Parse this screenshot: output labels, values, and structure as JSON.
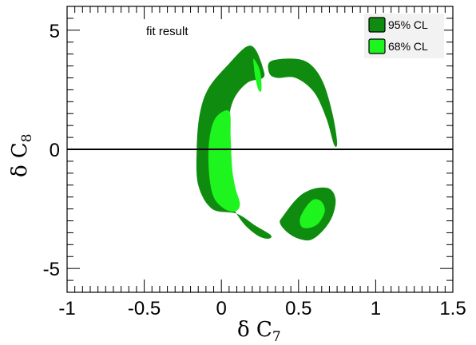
{
  "chart_data": {
    "type": "contour",
    "title": "",
    "xlabel": "δ C",
    "xlabel_sub": "7",
    "ylabel": "δ C",
    "ylabel_sub": "8",
    "xlim": [
      -1,
      1.5
    ],
    "ylim": [
      -6,
      6
    ],
    "x_ticks": [
      -1,
      -0.5,
      0,
      0.5,
      1,
      1.5
    ],
    "x_tick_labels": [
      "-1",
      "-0.5",
      "0",
      "0.5",
      "1",
      "1.5"
    ],
    "y_ticks": [
      -5,
      0,
      5
    ],
    "y_tick_labels": [
      "-5",
      "0",
      "5"
    ],
    "annotation": "fit result",
    "reference_line_y": 0,
    "legend_position": "top-right",
    "series": [
      {
        "name": "95% CL",
        "color": "#0f8c0f",
        "regions": [
          {
            "points": [
              [
                0.22,
                4.2
              ],
              [
                0.27,
                3.4
              ],
              [
                0.27,
                3.0
              ],
              [
                0.17,
                2.8
              ],
              [
                0.08,
                2.1
              ],
              [
                0.04,
                1.0
              ],
              [
                0.02,
                -0.5
              ],
              [
                0.05,
                -2.0
              ],
              [
                0.13,
                -3.0
              ],
              [
                0.23,
                -3.6
              ],
              [
                0.3,
                -3.75
              ],
              [
                0.32,
                -3.6
              ],
              [
                0.22,
                -3.2
              ],
              [
                0.1,
                -2.7
              ],
              [
                -0.06,
                -2.5
              ],
              [
                -0.15,
                -1.5
              ],
              [
                -0.16,
                0.0
              ],
              [
                -0.14,
                1.5
              ],
              [
                -0.08,
                2.6
              ],
              [
                0.05,
                3.6
              ],
              [
                0.16,
                4.3
              ]
            ]
          },
          {
            "points": [
              [
                0.32,
                3.7
              ],
              [
                0.48,
                3.8
              ],
              [
                0.58,
                3.55
              ],
              [
                0.66,
                2.8
              ],
              [
                0.72,
                1.5
              ],
              [
                0.75,
                0.3
              ],
              [
                0.73,
                0.2
              ],
              [
                0.68,
                1.3
              ],
              [
                0.6,
                2.4
              ],
              [
                0.48,
                3.0
              ],
              [
                0.36,
                3.0
              ],
              [
                0.31,
                3.2
              ]
            ]
          },
          {
            "points": [
              [
                0.4,
                -2.8
              ],
              [
                0.5,
                -2.0
              ],
              [
                0.6,
                -1.65
              ],
              [
                0.7,
                -1.65
              ],
              [
                0.74,
                -2.1
              ],
              [
                0.72,
                -2.8
              ],
              [
                0.66,
                -3.4
              ],
              [
                0.58,
                -3.8
              ],
              [
                0.5,
                -3.75
              ],
              [
                0.43,
                -3.5
              ],
              [
                0.38,
                -3.1
              ]
            ]
          }
        ]
      },
      {
        "name": "68% CL",
        "color": "#1ef51e",
        "regions": [
          {
            "points": [
              [
                0.21,
                3.8
              ],
              [
                0.25,
                3.3
              ],
              [
                0.26,
                2.5
              ],
              [
                0.24,
                2.5
              ],
              [
                0.22,
                3.0
              ],
              [
                0.21,
                3.5
              ]
            ]
          },
          {
            "points": [
              [
                0.05,
                1.6
              ],
              [
                0.06,
                0.5
              ],
              [
                0.07,
                -0.8
              ],
              [
                0.09,
                -1.6
              ],
              [
                0.12,
                -2.3
              ],
              [
                0.09,
                -2.6
              ],
              [
                0.02,
                -2.5
              ],
              [
                -0.05,
                -2.0
              ],
              [
                -0.08,
                -1.0
              ],
              [
                -0.08,
                0.3
              ],
              [
                -0.04,
                1.3
              ]
            ]
          },
          {
            "points": [
              [
                0.51,
                -2.9
              ],
              [
                0.55,
                -2.4
              ],
              [
                0.6,
                -2.1
              ],
              [
                0.65,
                -2.2
              ],
              [
                0.67,
                -2.6
              ],
              [
                0.63,
                -3.1
              ],
              [
                0.57,
                -3.3
              ],
              [
                0.52,
                -3.25
              ]
            ]
          }
        ]
      }
    ]
  }
}
